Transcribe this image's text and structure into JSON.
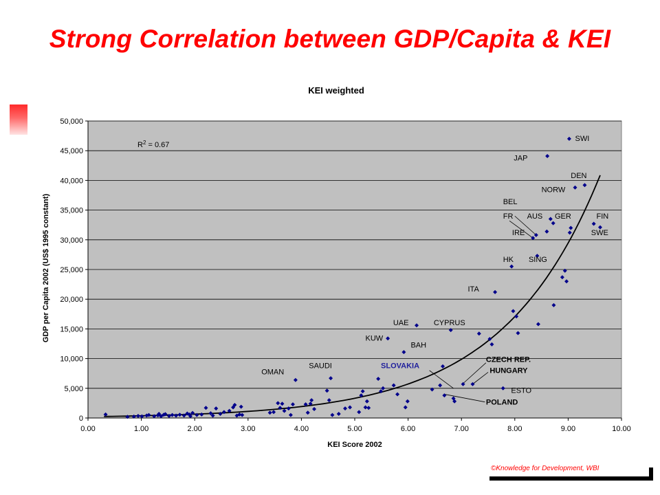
{
  "slide": {
    "title": "Strong Correlation between GDP/Capita & KEI",
    "footer": "©Knowledge for Development, WBI"
  },
  "chart_data": {
    "type": "scatter",
    "title": "KEI weighted",
    "xlabel": "KEI Score 2002",
    "ylabel": "GDP per Capita 2002 (US$ 1995 constant)",
    "xlim": [
      0,
      10
    ],
    "ylim": [
      0,
      50000
    ],
    "xticks": [
      "0.00",
      "1.00",
      "2.00",
      "3.00",
      "4.00",
      "5.00",
      "6.00",
      "7.00",
      "8.00",
      "9.00",
      "10.00"
    ],
    "yticks": [
      "0",
      "5,000",
      "10,000",
      "15,000",
      "20,000",
      "25,000",
      "30,000",
      "35,000",
      "40,000",
      "45,000",
      "50,000"
    ],
    "grid": true,
    "plot_background": "#c0c0c0",
    "marker_color": "#00008b",
    "trendline_color": "#000000",
    "r2_label": "R",
    "r2_superscript": "2",
    "r2_value": " = 0.67",
    "trendline": {
      "type": "exponential",
      "a": 216.5,
      "b": 0.5459,
      "x_start": 0.3,
      "x_end": 9.6
    },
    "points": [
      [
        0.33,
        600
      ],
      [
        0.74,
        200
      ],
      [
        0.86,
        250
      ],
      [
        0.94,
        350
      ],
      [
        1.01,
        280
      ],
      [
        1.1,
        420
      ],
      [
        1.14,
        500
      ],
      [
        1.24,
        300
      ],
      [
        1.31,
        450
      ],
      [
        1.33,
        700
      ],
      [
        1.37,
        300
      ],
      [
        1.42,
        550
      ],
      [
        1.45,
        650
      ],
      [
        1.52,
        350
      ],
      [
        1.58,
        500
      ],
      [
        1.65,
        400
      ],
      [
        1.72,
        550
      ],
      [
        1.8,
        420
      ],
      [
        1.86,
        750
      ],
      [
        1.9,
        600
      ],
      [
        1.92,
        300
      ],
      [
        1.96,
        850
      ],
      [
        2.04,
        500
      ],
      [
        2.13,
        600
      ],
      [
        2.21,
        1700
      ],
      [
        2.3,
        800
      ],
      [
        2.34,
        400
      ],
      [
        2.4,
        1600
      ],
      [
        2.48,
        700
      ],
      [
        2.55,
        1000
      ],
      [
        2.65,
        1200
      ],
      [
        2.72,
        1800
      ],
      [
        2.75,
        2200
      ],
      [
        2.79,
        400
      ],
      [
        2.84,
        600
      ],
      [
        2.87,
        1900
      ],
      [
        2.89,
        500
      ],
      [
        3.41,
        900
      ],
      [
        3.48,
        1000
      ],
      [
        3.56,
        2500
      ],
      [
        3.6,
        1700
      ],
      [
        3.64,
        2400
      ],
      [
        3.68,
        1200
      ],
      [
        3.76,
        1600
      ],
      [
        3.8,
        500
      ],
      [
        3.84,
        2300
      ],
      [
        3.89,
        6400
      ],
      [
        4.08,
        2300
      ],
      [
        4.12,
        900
      ],
      [
        4.17,
        2400
      ],
      [
        4.19,
        3000
      ],
      [
        4.24,
        1500
      ],
      [
        4.48,
        4600
      ],
      [
        4.52,
        3000
      ],
      [
        4.55,
        6700
      ],
      [
        4.58,
        500
      ],
      [
        4.7,
        700
      ],
      [
        4.82,
        1600
      ],
      [
        4.91,
        1800
      ],
      [
        5.08,
        1000
      ],
      [
        5.12,
        3800
      ],
      [
        5.15,
        4500
      ],
      [
        5.2,
        1800
      ],
      [
        5.23,
        2800
      ],
      [
        5.26,
        1700
      ],
      [
        5.44,
        6600
      ],
      [
        5.49,
        4500
      ],
      [
        5.53,
        5000
      ],
      [
        5.62,
        13400
      ],
      [
        5.73,
        5500
      ],
      [
        5.8,
        4000
      ],
      [
        5.92,
        11100
      ],
      [
        5.95,
        1800
      ],
      [
        5.99,
        2800
      ],
      [
        6.16,
        15600
      ],
      [
        6.45,
        4800
      ],
      [
        6.6,
        5500
      ],
      [
        6.65,
        8700
      ],
      [
        6.68,
        3800
      ],
      [
        6.8,
        14800
      ],
      [
        6.85,
        3300
      ],
      [
        6.87,
        2800
      ],
      [
        7.03,
        5700
      ],
      [
        7.21,
        5700
      ],
      [
        7.33,
        14200
      ],
      [
        7.53,
        13300
      ],
      [
        7.57,
        12400
      ],
      [
        7.63,
        21200
      ],
      [
        7.78,
        5000
      ],
      [
        7.94,
        25500
      ],
      [
        7.97,
        18000
      ],
      [
        8.03,
        17100
      ],
      [
        8.06,
        14300
      ],
      [
        8.34,
        30300
      ],
      [
        8.4,
        30800
      ],
      [
        8.42,
        27300
      ],
      [
        8.44,
        15800
      ],
      [
        8.6,
        31400
      ],
      [
        8.61,
        44100
      ],
      [
        8.67,
        33500
      ],
      [
        8.72,
        32800
      ],
      [
        8.73,
        19000
      ],
      [
        8.89,
        23700
      ],
      [
        8.94,
        24800
      ],
      [
        8.97,
        23000
      ],
      [
        9.02,
        47000
      ],
      [
        9.03,
        31200
      ],
      [
        9.05,
        32000
      ],
      [
        9.13,
        38800
      ],
      [
        9.31,
        39200
      ],
      [
        9.48,
        32700
      ],
      [
        9.6,
        32100
      ]
    ],
    "annotations": [
      {
        "text": "SWI",
        "x": 9.13,
        "y": 46650,
        "color": "#000000",
        "bold": false
      },
      {
        "text": "JAP",
        "x": 7.98,
        "y": 43350,
        "color": "#000000",
        "bold": false
      },
      {
        "text": "DEN",
        "x": 9.05,
        "y": 40400,
        "color": "#000000",
        "bold": false
      },
      {
        "text": "NORW",
        "x": 8.5,
        "y": 38000,
        "color": "#000000",
        "bold": false
      },
      {
        "text": "BEL",
        "x": 7.78,
        "y": 36000,
        "color": "#000000",
        "bold": false
      },
      {
        "text": "AUS",
        "x": 8.23,
        "y": 33550,
        "color": "#000000",
        "bold": false
      },
      {
        "text": "GER",
        "x": 8.75,
        "y": 33550,
        "color": "#000000",
        "bold": false
      },
      {
        "text": "FR",
        "x": 7.78,
        "y": 33550,
        "color": "#000000",
        "bold": false
      },
      {
        "text": "FIN",
        "x": 9.53,
        "y": 33550,
        "color": "#000000",
        "bold": false
      },
      {
        "text": "IRE",
        "x": 7.95,
        "y": 30800,
        "color": "#000000",
        "bold": false
      },
      {
        "text": "SWE",
        "x": 9.43,
        "y": 30800,
        "color": "#000000",
        "bold": false
      },
      {
        "text": "HK",
        "x": 7.78,
        "y": 26250,
        "color": "#000000",
        "bold": false
      },
      {
        "text": "SING",
        "x": 8.26,
        "y": 26250,
        "color": "#000000",
        "bold": false
      },
      {
        "text": "ITA",
        "x": 7.12,
        "y": 21300,
        "color": "#000000",
        "bold": false
      },
      {
        "text": "UAE",
        "x": 5.72,
        "y": 15650,
        "color": "#000000",
        "bold": false
      },
      {
        "text": "CYPRUS",
        "x": 6.48,
        "y": 15650,
        "color": "#000000",
        "bold": false
      },
      {
        "text": "KUW",
        "x": 5.2,
        "y": 13000,
        "color": "#000000",
        "bold": false
      },
      {
        "text": "BAH",
        "x": 6.05,
        "y": 11850,
        "color": "#000000",
        "bold": false
      },
      {
        "text": "OMAN",
        "x": 3.25,
        "y": 7350,
        "color": "#000000",
        "bold": false
      },
      {
        "text": "SAUDI",
        "x": 4.14,
        "y": 8400,
        "color": "#000000",
        "bold": false
      },
      {
        "text": "SLOVAKIA",
        "x": 5.49,
        "y": 8400,
        "color": "#1f1f9c",
        "bold": true
      },
      {
        "text": "CZECH REP.",
        "x": 7.46,
        "y": 9450,
        "color": "#000000",
        "bold": true
      },
      {
        "text": "HUNGARY",
        "x": 7.53,
        "y": 7600,
        "color": "#000000",
        "bold": true
      },
      {
        "text": "ESTO",
        "x": 7.93,
        "y": 4200,
        "color": "#000000",
        "bold": false
      },
      {
        "text": "POLAND",
        "x": 7.46,
        "y": 2250,
        "color": "#000000",
        "bold": true
      }
    ],
    "leaders": [
      [
        8.0,
        34000,
        8.4,
        30800
      ],
      [
        7.9,
        33200,
        8.34,
        30300
      ],
      [
        6.4,
        8000,
        6.85,
        5000
      ],
      [
        7.46,
        9300,
        7.03,
        5800
      ],
      [
        7.5,
        7700,
        7.21,
        5700
      ],
      [
        7.44,
        2700,
        6.68,
        4000
      ]
    ]
  }
}
